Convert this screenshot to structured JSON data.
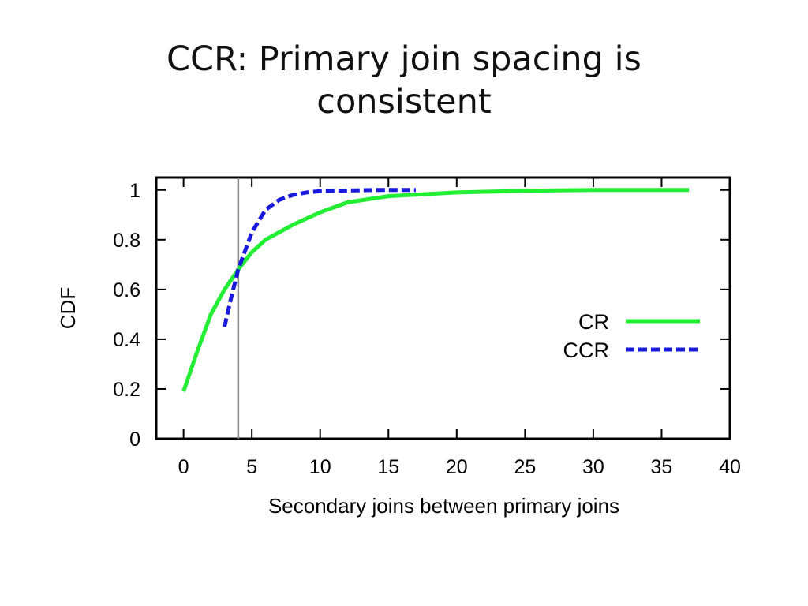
{
  "slide": {
    "title_line1": "CCR: Primary join spacing is",
    "title_line2": "consistent"
  },
  "chart_data": {
    "type": "line",
    "title": "",
    "xlabel": "Secondary joins between primary joins",
    "ylabel": "CDF",
    "xlim": [
      -2,
      40
    ],
    "ylim": [
      0,
      1.05
    ],
    "x_ticks": [
      "0",
      "5",
      "10",
      "15",
      "20",
      "25",
      "30",
      "35",
      "40"
    ],
    "y_ticks": [
      "0",
      "0.2",
      "0.4",
      "0.6",
      "0.8",
      "1"
    ],
    "x_tick_values": [
      0,
      5,
      10,
      15,
      20,
      25,
      30,
      35,
      40
    ],
    "y_tick_values": [
      0,
      0.2,
      0.4,
      0.6,
      0.8,
      1.0
    ],
    "grid": false,
    "legend_position": "right",
    "reference_line_x": 4,
    "series": [
      {
        "name": "CR",
        "color": "#22ee33",
        "style": "solid",
        "x": [
          0,
          1,
          2,
          3,
          4,
          5,
          6,
          8,
          10,
          12,
          15,
          20,
          25,
          30,
          37
        ],
        "y": [
          0.19,
          0.35,
          0.5,
          0.6,
          0.68,
          0.75,
          0.8,
          0.86,
          0.91,
          0.95,
          0.975,
          0.99,
          0.997,
          1.0,
          1.0
        ]
      },
      {
        "name": "CCR",
        "color": "#1a1adc",
        "style": "dashed",
        "x": [
          3,
          3.5,
          4,
          5,
          6,
          7,
          8,
          9,
          10,
          12,
          14,
          17
        ],
        "y": [
          0.45,
          0.57,
          0.68,
          0.83,
          0.92,
          0.96,
          0.98,
          0.99,
          0.995,
          0.998,
          1.0,
          1.0
        ]
      }
    ]
  }
}
